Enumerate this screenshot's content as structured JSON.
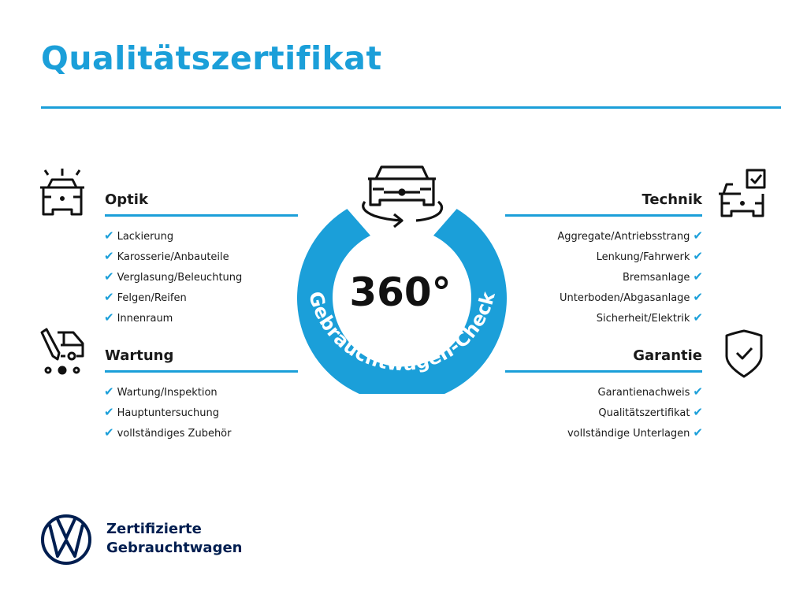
{
  "title": "Qualitätszertifikat",
  "colors": {
    "accent": "#1b9fd9",
    "text": "#1a1a1a",
    "brand": "#001e50"
  },
  "center": {
    "degrees": "360°",
    "ring_text": "Gebrauchtwagen-Check",
    "icon": "car-rotate-icon"
  },
  "check_glyph": "✔",
  "sections": {
    "optik": {
      "heading": "Optik",
      "icon": "car-lights-icon",
      "items": [
        "Lackierung",
        "Karosserie/Anbauteile",
        "Verglasung/Beleuchtung",
        "Felgen/Reifen",
        "Innenraum"
      ]
    },
    "wartung": {
      "heading": "Wartung",
      "icon": "car-service-icon",
      "items": [
        "Wartung/Inspektion",
        "Hauptuntersuchung",
        "vollständiges Zubehör"
      ]
    },
    "technik": {
      "heading": "Technik",
      "icon": "car-checkbox-icon",
      "items": [
        "Aggregate/Antriebsstrang",
        "Lenkung/Fahrwerk",
        "Bremsanlage",
        "Unterboden/Abgasanlage",
        "Sicherheit/Elektrik"
      ]
    },
    "garantie": {
      "heading": "Garantie",
      "icon": "shield-check-icon",
      "items": [
        "Garantienachweis",
        "Qualitätszertifikat",
        "vollständige Unterlagen"
      ]
    }
  },
  "footer": {
    "line1": "Zertifizierte",
    "line2": "Gebrauchtwagen",
    "logo": "vw-logo"
  }
}
